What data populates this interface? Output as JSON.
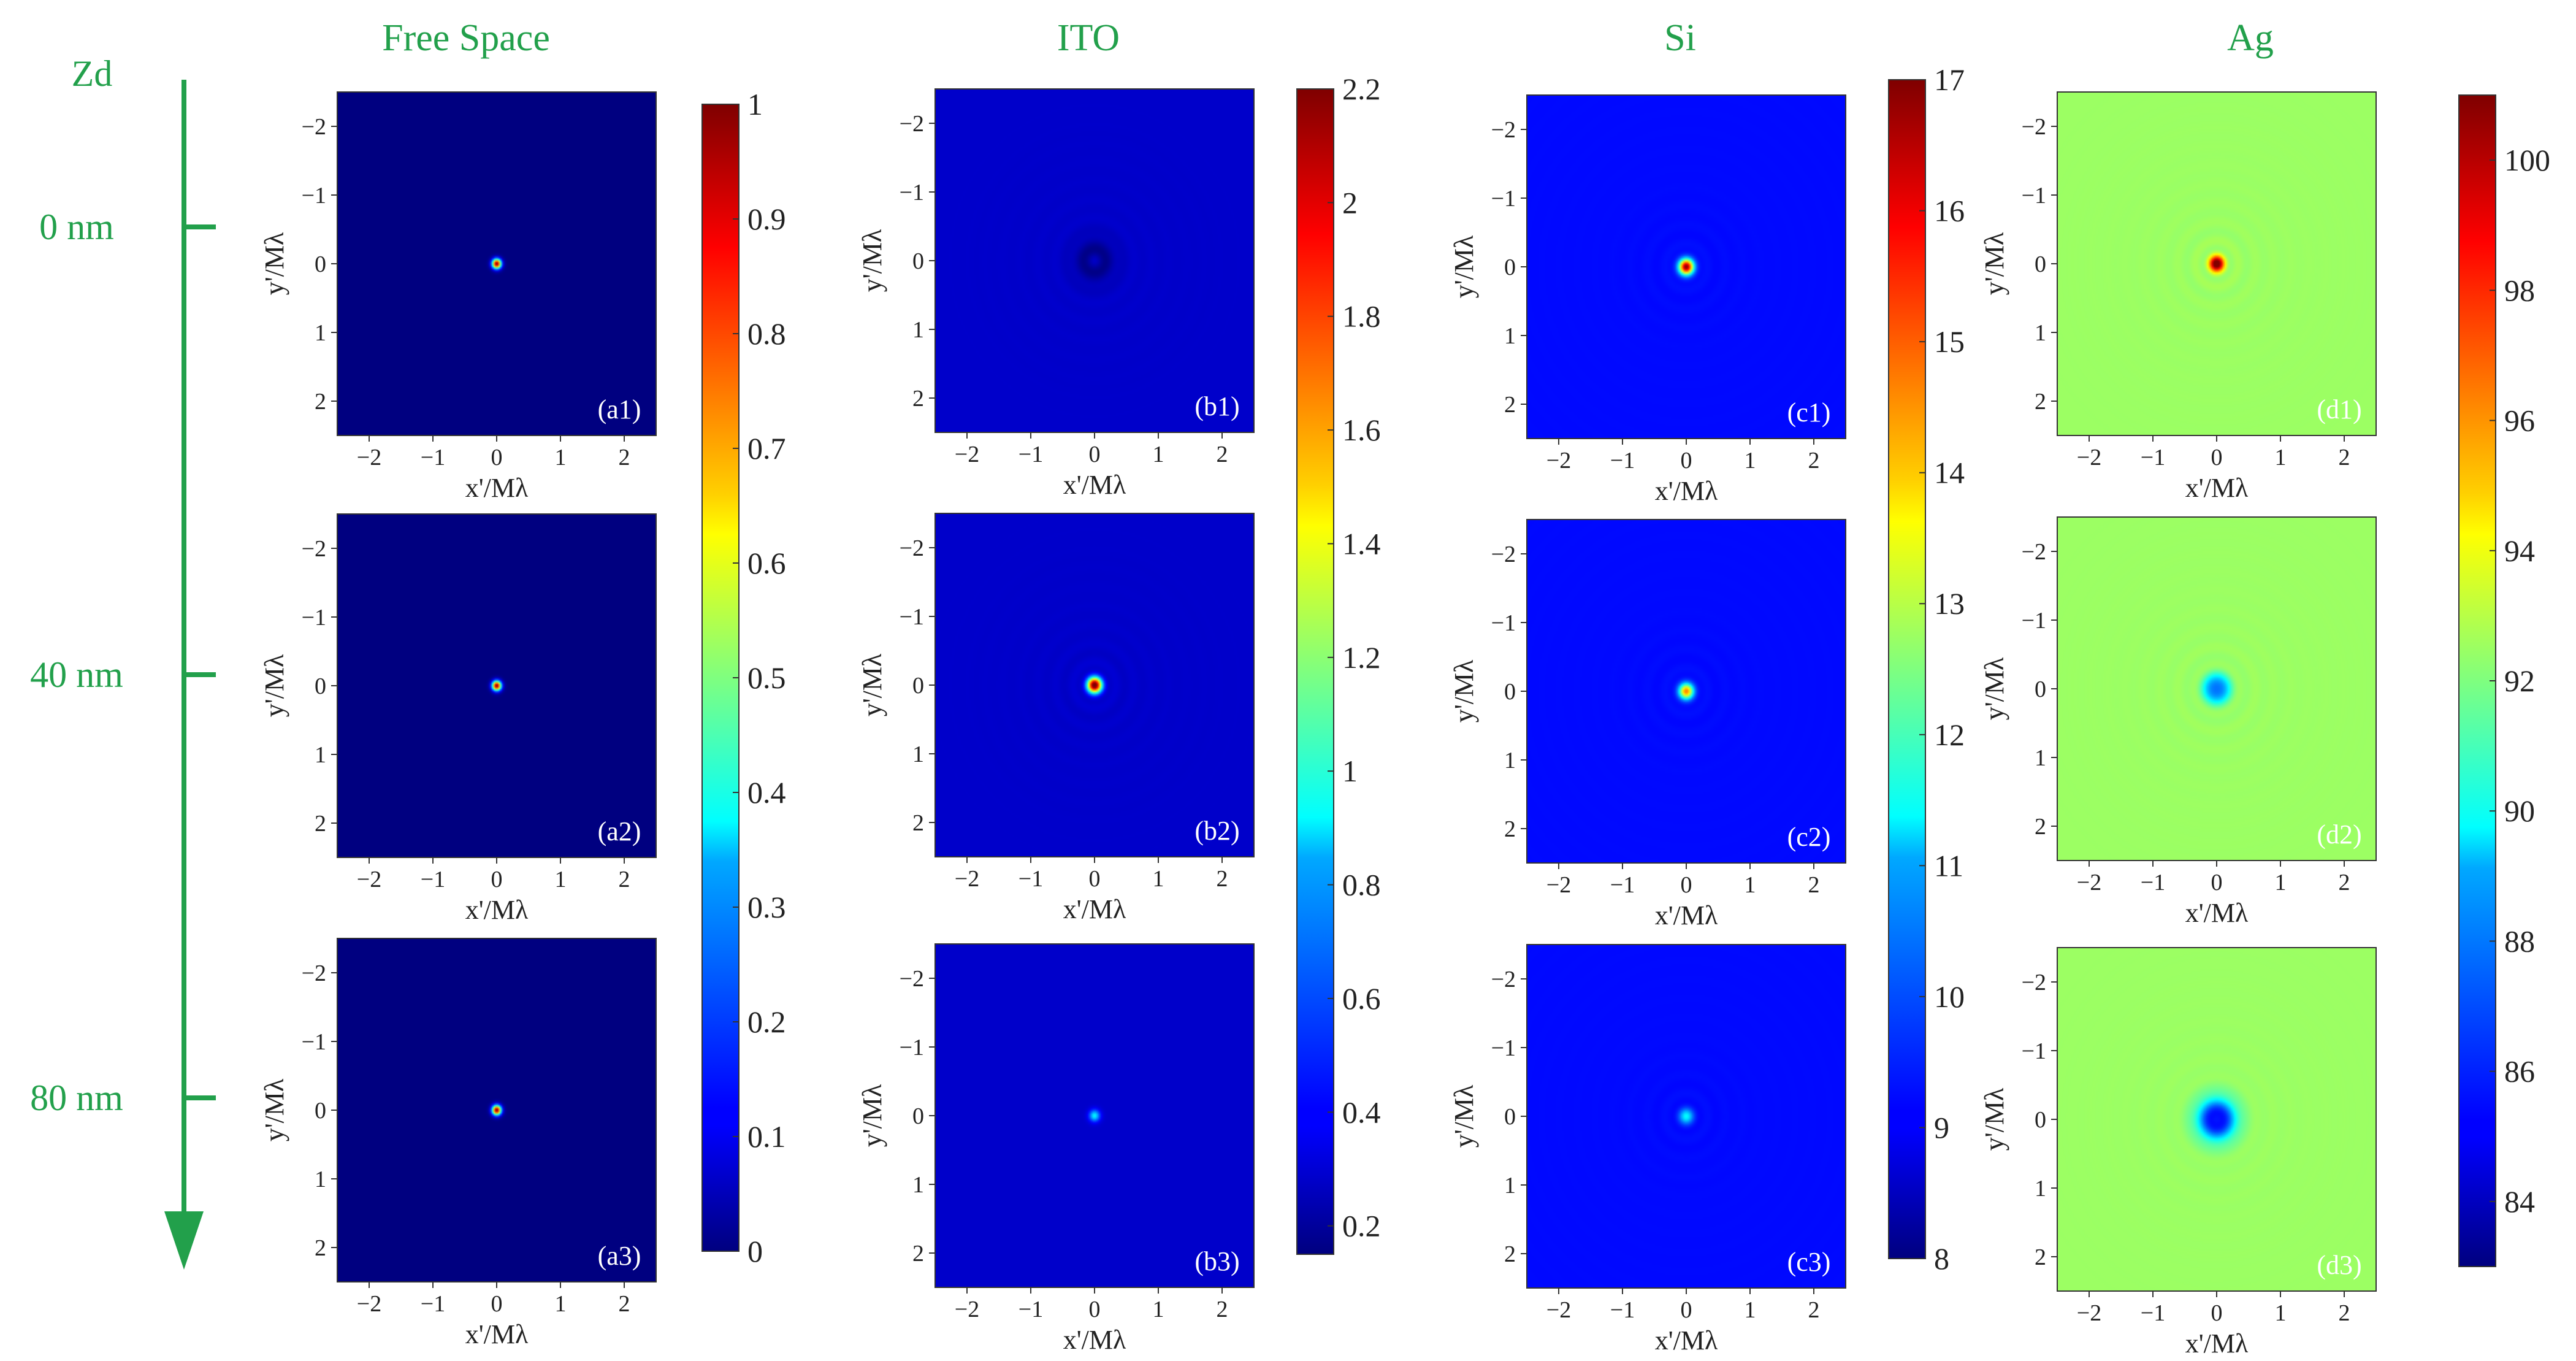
{
  "figure": {
    "z_axis_label": "Zd",
    "z_labels": [
      "0 nm",
      "40 nm",
      "80 nm"
    ],
    "x_axis_label": "x'/Mλ",
    "y_axis_label": "y'/Mλ",
    "axis_ticks": [
      "−2",
      "−1",
      "0",
      "1",
      "2"
    ],
    "accent_color": "#22a04b"
  },
  "chart_data": [
    {
      "type": "heatmap",
      "title": "Free Space",
      "colorbar": {
        "min": 0,
        "max": 1,
        "ticks": [
          "0",
          "0.1",
          "0.2",
          "0.3",
          "0.4",
          "0.5",
          "0.6",
          "0.7",
          "0.8",
          "0.9",
          "1"
        ]
      },
      "xlabel": "x'/Mλ",
      "ylabel": "y'/Mλ",
      "xlim": [
        -2.5,
        2.5
      ],
      "ylim": [
        2.5,
        -2.5
      ],
      "panels": [
        {
          "label": "(a1)",
          "bg": 0.0,
          "center": 1.0,
          "ring": 0.0,
          "core": 0.05
        },
        {
          "label": "(a2)",
          "bg": 0.0,
          "center": 1.0,
          "ring": 0.0,
          "core": 0.05
        },
        {
          "label": "(a3)",
          "bg": 0.0,
          "center": 1.0,
          "ring": 0.0,
          "core": 0.05
        }
      ]
    },
    {
      "type": "heatmap",
      "title": "ITO",
      "colorbar": {
        "min": 0.15,
        "max": 2.2,
        "ticks": [
          "0.2",
          "0.4",
          "0.6",
          "0.8",
          "1",
          "1.2",
          "1.4",
          "1.6",
          "1.8",
          "2",
          "2.2"
        ]
      },
      "xlabel": "x'/Mλ",
      "ylabel": "y'/Mλ",
      "xlim": [
        -2.5,
        2.5
      ],
      "ylim": [
        2.5,
        -2.5
      ],
      "panels": [
        {
          "label": "(b1)",
          "bg": 0.3,
          "center": 0.15,
          "ring": 0.14,
          "core": 0.22
        },
        {
          "label": "(b2)",
          "bg": 0.3,
          "center": 2.2,
          "ring": 0.16,
          "core": 0.08
        },
        {
          "label": "(b3)",
          "bg": 0.3,
          "center": 0.9,
          "ring": 0.0,
          "core": 0.06
        }
      ]
    },
    {
      "type": "heatmap",
      "title": "Si",
      "colorbar": {
        "min": 8,
        "max": 17,
        "ticks": [
          "8",
          "9",
          "10",
          "11",
          "12",
          "13",
          "14",
          "15",
          "16",
          "17"
        ]
      },
      "xlabel": "x'/Mλ",
      "ylabel": "y'/Mλ",
      "xlim": [
        -2.5,
        2.5
      ],
      "ylim": [
        2.5,
        -2.5
      ],
      "panels": [
        {
          "label": "(c1)",
          "bg": 9.2,
          "center": 16.5,
          "ring": 0.45,
          "core": 0.08
        },
        {
          "label": "(c2)",
          "bg": 9.2,
          "center": 14.3,
          "ring": 0.45,
          "core": 0.08
        },
        {
          "label": "(c3)",
          "bg": 9.2,
          "center": 11.0,
          "ring": 0.4,
          "core": 0.08
        }
      ]
    },
    {
      "type": "heatmap",
      "title": "Ag",
      "colorbar": {
        "min": 83,
        "max": 101,
        "ticks": [
          "84",
          "86",
          "88",
          "90",
          "92",
          "94",
          "96",
          "98",
          "100"
        ]
      },
      "xlabel": "x'/Mλ",
      "ylabel": "y'/Mλ",
      "xlim": [
        -2.5,
        2.5
      ],
      "ylim": [
        2.5,
        -2.5
      ],
      "panels": [
        {
          "label": "(d1)",
          "bg": 92.5,
          "center": 101.0,
          "ring": 1.8,
          "core": 0.08
        },
        {
          "label": "(d2)",
          "bg": 92.5,
          "center": 85.5,
          "ring": 1.8,
          "core": 0.13
        },
        {
          "label": "(d3)",
          "bg": 92.5,
          "center": 84.0,
          "ring": 1.6,
          "core": 0.2
        }
      ]
    }
  ]
}
